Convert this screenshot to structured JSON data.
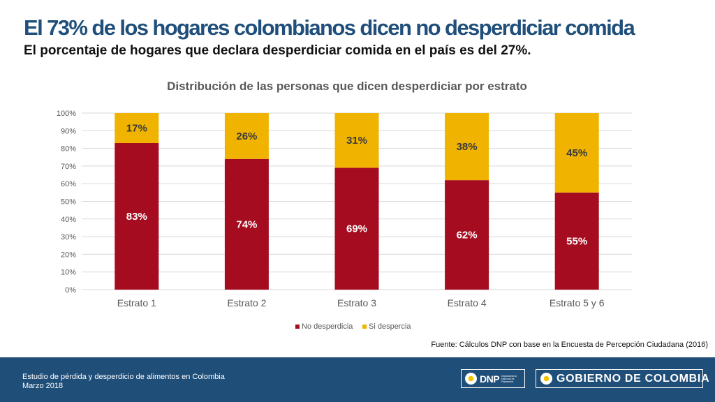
{
  "header": {
    "title": "El 73% de los hogares colombianos dicen no desperdiciar comida",
    "subtitle": "El porcentaje de hogares que declara desperdiciar comida en el país es del 27%."
  },
  "chart_data": {
    "type": "bar",
    "stacked": true,
    "title": "Distribución de las personas que dicen desperdiciar por estrato",
    "categories": [
      "Estrato 1",
      "Estrato 2",
      "Estrato 3",
      "Estrato 4",
      "Estrato 5 y 6"
    ],
    "series": [
      {
        "name": "No desperdicia",
        "values": [
          83,
          74,
          69,
          62,
          55
        ],
        "color": "#a50c1f",
        "label_color": "#ffffff"
      },
      {
        "name": "Si despercia",
        "values": [
          17,
          26,
          31,
          38,
          45
        ],
        "color": "#f0b400",
        "label_color": "#3a3a3a"
      }
    ],
    "ylim": [
      0,
      100
    ],
    "yticks": [
      0,
      10,
      20,
      30,
      40,
      50,
      60,
      70,
      80,
      90,
      100
    ],
    "ytick_suffix": "%",
    "grid": true,
    "legend": "bottom-center",
    "xlabel": "",
    "ylabel": ""
  },
  "source_note": "Fuente: Cálculos DNP con base en la Encuesta de Percepción Ciudadana (2016)",
  "footer": {
    "study": "Estudio de pérdida y desperdicio de alimentos en Colombia",
    "date": "Marzo 2018",
    "dnp_label": "DNP",
    "dnp_sub": "Departamento Nacional de Planeación",
    "gobierno_label": "GOBIERNO DE COLOMBIA"
  },
  "colors": {
    "title": "#1f4f7a",
    "footer_bg": "#1f4e79",
    "grid": "#d9d9d9"
  }
}
